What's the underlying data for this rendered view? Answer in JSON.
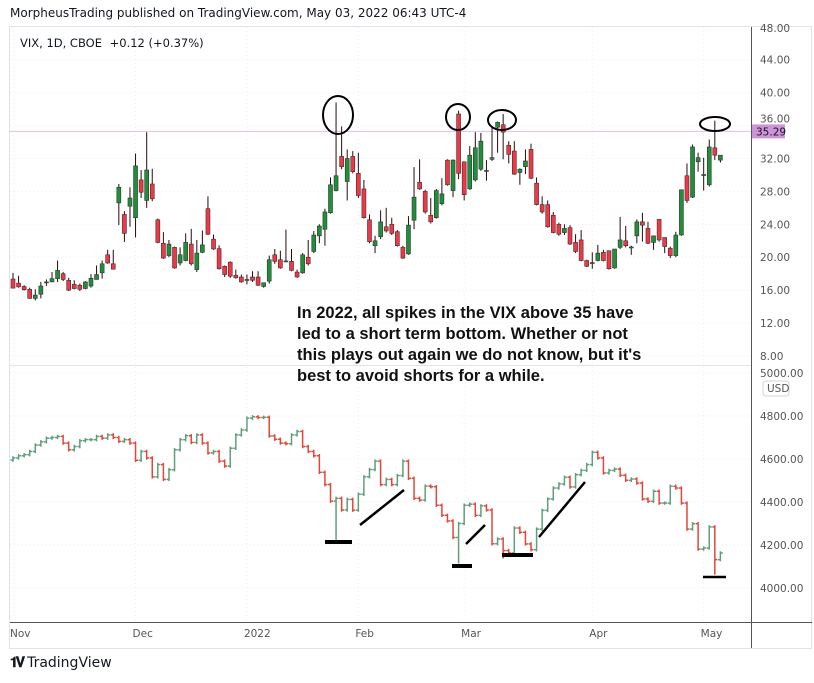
{
  "header": {
    "published": "MorpheusTrading published on TradingView.com, May 03, 2022 06:43 UTC-4"
  },
  "legend": {
    "symbol": "VIX, 1D, CBOE",
    "change": "+0.12 (+0.37%)"
  },
  "annotation": {
    "lines": [
      "In 2022, all spikes in the VIX above 35 have",
      "led to a short term bottom.  Whether or not",
      "this plays out again we do not know, but it's",
      "best to avoid shorts for a while."
    ]
  },
  "footer": {
    "logo_text": "TradingView",
    "logo_mark": "TV"
  },
  "colors": {
    "up": "#1f8f3a",
    "down": "#f23645",
    "spx_up": "#5f9f7a",
    "spx_down": "#e0483a",
    "level": "#e1bee7",
    "level_label": "#ce93d8"
  },
  "chart_data": [
    {
      "type": "candlestick",
      "name": "VIX",
      "ylim": [
        8,
        48
      ],
      "yticks": [
        "48.00",
        "44.00",
        "40.00",
        "36.00",
        "32.00",
        "28.00",
        "24.00",
        "20.00",
        "16.00",
        "12.00",
        "8.00"
      ],
      "ytick_values": [
        48,
        44,
        40,
        36,
        32,
        28,
        24,
        20,
        16,
        12,
        8
      ],
      "level_line": {
        "value": 35.29,
        "label": "35.29"
      },
      "ohlc": [
        [
          17.35,
          18.1,
          16.2,
          16.25
        ],
        [
          16.85,
          17.75,
          16.3,
          16.4
        ],
        [
          16.45,
          16.6,
          15.95,
          16.05
        ],
        [
          16.1,
          16.3,
          14.95,
          15.0
        ],
        [
          15.0,
          16.1,
          14.75,
          15.4
        ],
        [
          15.5,
          17.0,
          15.0,
          16.5
        ],
        [
          16.9,
          17.3,
          16.5,
          17.0
        ],
        [
          17.0,
          18.2,
          17.0,
          17.4
        ],
        [
          17.4,
          19.6,
          17.0,
          18.4
        ],
        [
          18.0,
          18.2,
          17.1,
          17.3
        ],
        [
          17.2,
          17.5,
          15.9,
          16.0
        ],
        [
          16.7,
          17.2,
          16.1,
          16.2
        ],
        [
          16.6,
          16.8,
          15.9,
          16.1
        ],
        [
          16.2,
          17.1,
          16.1,
          17.0
        ],
        [
          16.5,
          17.95,
          16.3,
          17.45
        ],
        [
          17.3,
          19.0,
          17.3,
          17.9
        ],
        [
          18.1,
          19.6,
          17.4,
          19.2
        ],
        [
          20.3,
          20.9,
          19.2,
          19.3
        ],
        [
          19.2,
          20.9,
          18.5,
          18.55
        ],
        [
          26.6,
          28.9,
          23.9,
          28.5
        ],
        [
          25.2,
          25.6,
          21.85,
          22.9
        ],
        [
          26.2,
          28.5,
          23.7,
          27.2
        ],
        [
          24.8,
          32.6,
          22.4,
          31.1
        ],
        [
          29.4,
          30.6,
          27.2,
          27.9
        ],
        [
          26.9,
          35.2,
          26.0,
          30.6
        ],
        [
          28.9,
          30.75,
          26.8,
          27.1
        ],
        [
          24.55,
          24.7,
          21.7,
          21.8
        ],
        [
          21.7,
          23.05,
          19.8,
          19.9
        ],
        [
          20.2,
          22.1,
          20.0,
          21.6
        ],
        [
          21.2,
          21.3,
          18.6,
          18.7
        ],
        [
          19.3,
          21.2,
          19.0,
          20.3
        ],
        [
          19.6,
          22.9,
          19.5,
          21.8
        ],
        [
          21.6,
          23.45,
          19.0,
          19.2
        ],
        [
          18.5,
          22.1,
          18.2,
          20.5
        ],
        [
          20.6,
          23.25,
          20.5,
          21.5
        ],
        [
          25.9,
          27.4,
          22.7,
          22.8
        ],
        [
          22.2,
          22.75,
          20.9,
          21.0
        ],
        [
          21.05,
          21.45,
          18.5,
          18.6
        ],
        [
          18.9,
          19.0,
          17.6,
          17.9
        ],
        [
          19.4,
          19.5,
          17.5,
          17.7
        ],
        [
          17.8,
          18.5,
          17.4,
          17.5
        ],
        [
          17.6,
          17.9,
          16.9,
          17.0
        ],
        [
          17.2,
          17.9,
          16.7,
          17.3
        ],
        [
          17.6,
          18.3,
          17.0,
          17.2
        ],
        [
          17.6,
          18.3,
          16.5,
          16.6
        ],
        [
          16.45,
          16.9,
          16.3,
          16.9
        ],
        [
          17.1,
          20.2,
          16.8,
          19.7
        ],
        [
          20.3,
          21.0,
          19.2,
          19.5
        ],
        [
          19.7,
          20.8,
          18.6,
          18.7
        ],
        [
          19.5,
          23.35,
          19.4,
          19.55
        ],
        [
          19.5,
          21.0,
          18.3,
          18.4
        ],
        [
          18.2,
          18.5,
          17.5,
          17.6
        ],
        [
          18.1,
          20.5,
          18.0,
          20.3
        ],
        [
          20.0,
          22.1,
          19.0,
          19.2
        ],
        [
          20.7,
          23.2,
          20.5,
          22.7
        ],
        [
          22.6,
          24.0,
          21.7,
          23.8
        ],
        [
          23.4,
          25.9,
          21.4,
          25.5
        ],
        [
          25.4,
          29.7,
          25.3,
          28.8
        ],
        [
          28.1,
          38.8,
          28.0,
          29.9
        ],
        [
          32.25,
          35.9,
          30.7,
          31.0
        ],
        [
          29.2,
          33.1,
          26.9,
          32.0
        ],
        [
          32.25,
          32.9,
          30.2,
          30.4
        ],
        [
          30.2,
          32.7,
          27.2,
          27.5
        ],
        [
          28.3,
          29.4,
          24.7,
          24.8
        ],
        [
          24.55,
          25.2,
          21.7,
          21.9
        ],
        [
          21.4,
          22.6,
          20.5,
          22.0
        ],
        [
          22.5,
          25.7,
          22.2,
          24.3
        ],
        [
          23.7,
          26.0,
          23.0,
          23.2
        ],
        [
          24.0,
          24.8,
          22.7,
          22.9
        ],
        [
          23.1,
          23.3,
          21.3,
          21.4
        ],
        [
          21.2,
          21.4,
          19.8,
          19.9
        ],
        [
          20.4,
          25.0,
          20.3,
          23.9
        ],
        [
          24.5,
          30.95,
          23.4,
          27.3
        ],
        [
          29.1,
          31.9,
          28.2,
          28.3
        ],
        [
          28.0,
          28.2,
          25.3,
          25.5
        ],
        [
          25.1,
          27.2,
          24.1,
          24.3
        ],
        [
          24.8,
          28.3,
          24.7,
          28.1
        ],
        [
          26.5,
          29.6,
          26.3,
          27.7
        ],
        [
          31.8,
          31.9,
          28.7,
          28.8
        ],
        [
          28.1,
          31.9,
          27.3,
          31.8
        ],
        [
          37.4,
          37.8,
          29.5,
          30.2
        ],
        [
          31.6,
          31.6,
          26.9,
          27.6
        ],
        [
          28.3,
          33.5,
          28.2,
          32.4
        ],
        [
          29.4,
          35.2,
          29.2,
          33.3
        ],
        [
          30.7,
          35.1,
          30.5,
          34.1
        ],
        [
          30.5,
          31.8,
          29.3,
          30.55
        ],
        [
          31.9,
          35.9,
          31.7,
          32.1
        ],
        [
          35.8,
          36.5,
          32.7,
          36.4
        ],
        [
          36.1,
          37.4,
          31.9,
          35.2
        ],
        [
          33.6,
          34.1,
          31.4,
          32.5
        ],
        [
          32.9,
          34.1,
          30.0,
          30.1
        ],
        [
          30.3,
          30.8,
          28.8,
          30.7
        ],
        [
          31.0,
          33.1,
          30.1,
          31.7
        ],
        [
          33.1,
          33.8,
          29.5,
          29.6
        ],
        [
          29.0,
          29.7,
          26.3,
          26.4
        ],
        [
          26.4,
          27.4,
          25.3,
          25.5
        ],
        [
          26.4,
          26.9,
          23.6,
          23.7
        ],
        [
          25.1,
          25.5,
          22.9,
          23.0
        ],
        [
          24.0,
          24.2,
          22.6,
          22.8
        ],
        [
          23.0,
          24.0,
          22.7,
          23.5
        ],
        [
          23.6,
          23.9,
          21.5,
          21.6
        ],
        [
          21.8,
          22.8,
          20.5,
          20.7
        ],
        [
          22.1,
          23.3,
          19.5,
          19.6
        ],
        [
          19.6,
          19.7,
          18.8,
          18.9
        ],
        [
          19.3,
          20.6,
          18.6,
          19.35
        ],
        [
          19.6,
          21.5,
          19.5,
          20.5
        ],
        [
          20.6,
          20.9,
          19.5,
          19.6
        ],
        [
          20.8,
          20.8,
          18.5,
          18.6
        ],
        [
          18.7,
          21.0,
          18.6,
          21.0
        ],
        [
          21.2,
          24.9,
          21.0,
          22.1
        ],
        [
          22.0,
          23.8,
          21.2,
          21.4
        ],
        [
          21.2,
          21.4,
          20.3,
          21.25
        ],
        [
          22.6,
          24.6,
          21.7,
          24.3
        ],
        [
          24.3,
          25.4,
          21.9,
          23.9
        ],
        [
          23.5,
          24.3,
          21.6,
          21.7
        ],
        [
          21.8,
          22.6,
          20.9,
          22.6
        ],
        [
          24.6,
          24.6,
          21.9,
          22.1
        ],
        [
          22.4,
          22.4,
          20.5,
          21.3
        ],
        [
          21.1,
          21.3,
          19.9,
          20.2
        ],
        [
          20.2,
          23.1,
          20.0,
          22.7
        ],
        [
          22.7,
          28.2,
          22.6,
          28.2
        ],
        [
          29.9,
          31.4,
          26.6,
          26.9
        ],
        [
          27.3,
          33.7,
          27.2,
          33.4
        ],
        [
          31.6,
          32.7,
          30.4,
          32.1
        ],
        [
          30.0,
          32.1,
          28.1,
          30.05
        ],
        [
          28.8,
          34.3,
          28.6,
          33.4
        ],
        [
          33.3,
          36.6,
          31.8,
          32.4
        ],
        [
          31.8,
          32.4,
          31.5,
          32.4
        ]
      ]
    },
    {
      "type": "ohlc-bars",
      "name": "SPX",
      "ylim": [
        3900,
        5000
      ],
      "yticks": [
        "5000.00",
        "4800.00",
        "4600.00",
        "4400.00",
        "4200.00",
        "4000.00"
      ],
      "ytick_values": [
        5000,
        4800,
        4600,
        4400,
        4200,
        4000
      ],
      "currency_badge": "USD",
      "close": [
        4605,
        4615,
        4620,
        4635,
        4665,
        4680,
        4697,
        4700,
        4705,
        4674,
        4643,
        4658,
        4685,
        4690,
        4690,
        4705,
        4697,
        4712,
        4700,
        4682,
        4690,
        4674,
        4594,
        4635,
        4605,
        4517,
        4574,
        4505,
        4550,
        4643,
        4690,
        4708,
        4677,
        4712,
        4674,
        4628,
        4635,
        4590,
        4567,
        4650,
        4712,
        4735,
        4790,
        4796,
        4793,
        4794,
        4707,
        4692,
        4674,
        4671,
        4712,
        4728,
        4658,
        4635,
        4615,
        4538,
        4481,
        4404,
        4417,
        4363,
        4412,
        4362,
        4436,
        4517,
        4551,
        4590,
        4481,
        4505,
        4481,
        4523,
        4590,
        4510,
        4417,
        4409,
        4474,
        4471,
        4385,
        4338,
        4312,
        4235,
        4300,
        4385,
        4390,
        4338,
        4382,
        4363,
        4206,
        4228,
        4174,
        4163,
        4279,
        4259,
        4205,
        4178,
        4274,
        4361,
        4414,
        4465,
        4484,
        4515,
        4470,
        4527,
        4547,
        4574,
        4631,
        4605,
        4535,
        4547,
        4553,
        4524,
        4501,
        4507,
        4488,
        4414,
        4403,
        4450,
        4395,
        4395,
        4473,
        4465,
        4395,
        4274,
        4299,
        4181,
        4186,
        4284,
        4132,
        4163
      ],
      "low_overrides": [
        [
          58,
          4222
        ],
        [
          80,
          4114
        ],
        [
          88,
          4137
        ],
        [
          126,
          4062
        ]
      ]
    }
  ],
  "time_axis": {
    "labels": [
      "Nov",
      "Dec",
      "2022",
      "Feb",
      "Mar",
      "Apr",
      "May"
    ],
    "label_bar_index": [
      0,
      22,
      42,
      62,
      81,
      104,
      124
    ]
  }
}
